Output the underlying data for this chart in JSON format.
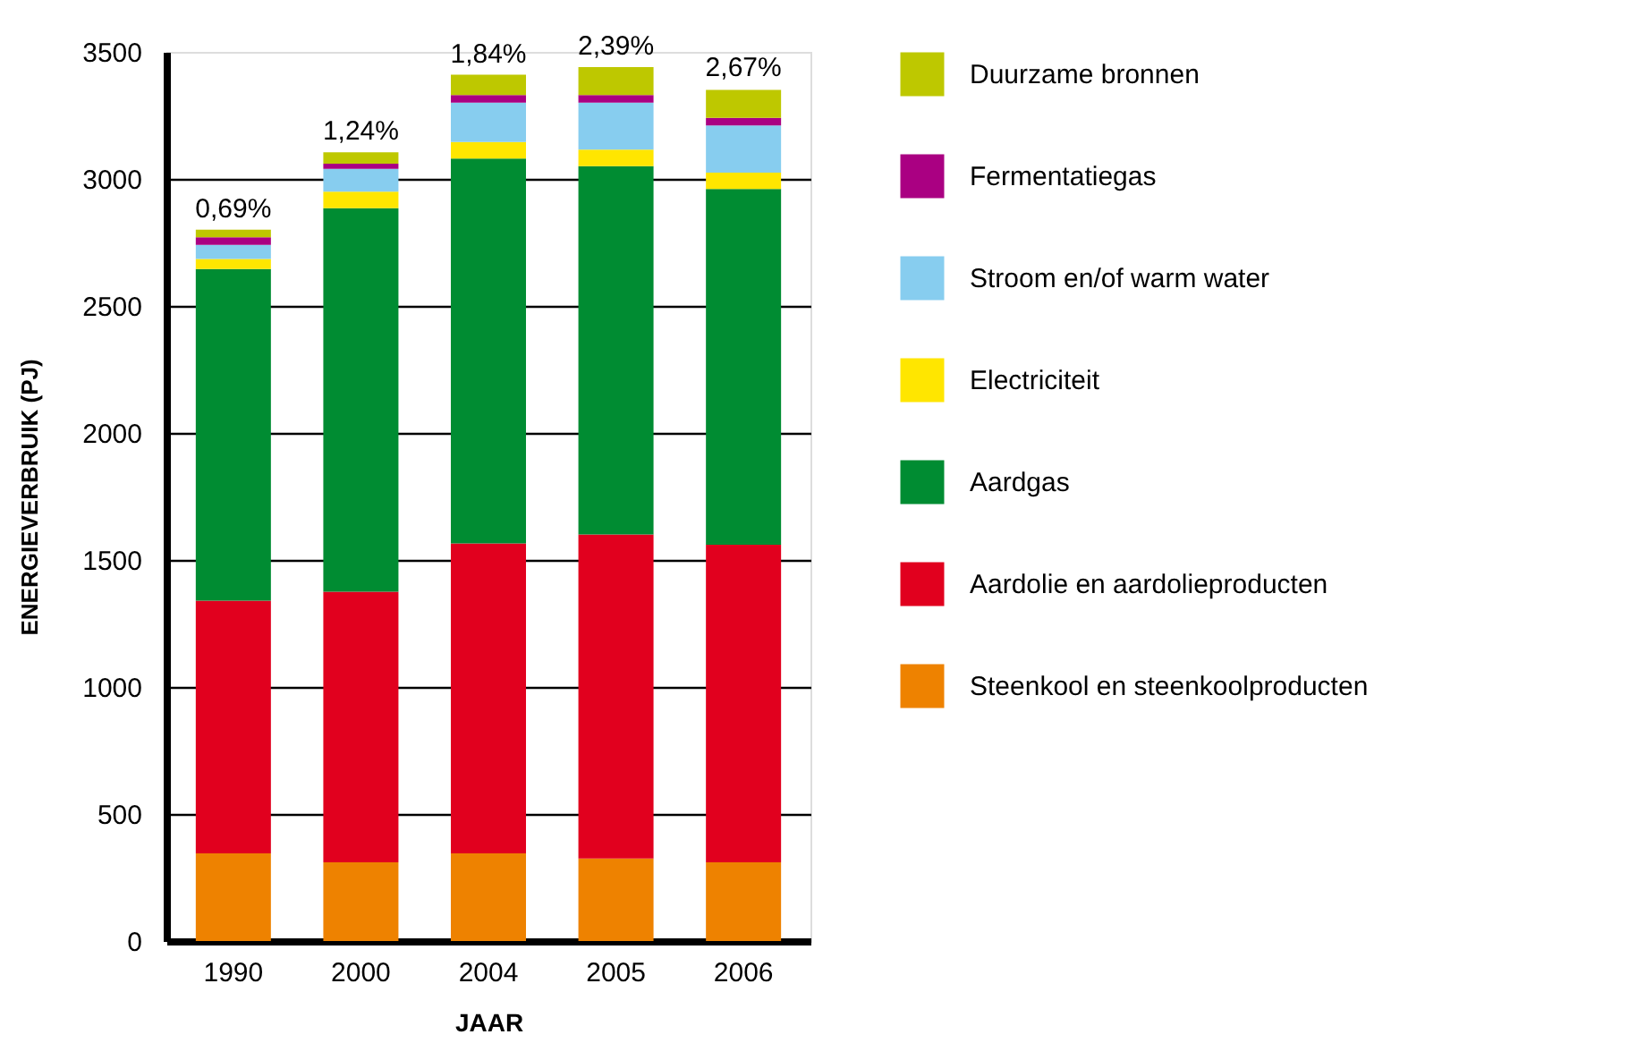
{
  "chart_data": {
    "type": "bar",
    "stacked": true,
    "xlabel": "JAAR",
    "ylabel": "ENERGIEVERBRUIK (PJ)",
    "categories": [
      "1990",
      "2000",
      "2004",
      "2005",
      "2006"
    ],
    "series": [
      {
        "name": "Steenkool en steenkoolproducten",
        "color": "#ee8200",
        "values": [
          345,
          310,
          345,
          325,
          310
        ]
      },
      {
        "name": "Aardolie en aardolieproducten",
        "color": "#e1001e",
        "values": [
          995,
          1065,
          1220,
          1275,
          1250
        ]
      },
      {
        "name": "Aardgas",
        "color": "#008c32",
        "values": [
          1305,
          1510,
          1515,
          1450,
          1400
        ]
      },
      {
        "name": "Electriciteit",
        "color": "#ffe600",
        "values": [
          40,
          65,
          65,
          65,
          65
        ]
      },
      {
        "name": "Stroom en/of warm water",
        "color": "#87cdef",
        "values": [
          55,
          90,
          155,
          185,
          185
        ]
      },
      {
        "name": "Fermentatiegas",
        "color": "#aa0082",
        "values": [
          30,
          20,
          30,
          30,
          30
        ]
      },
      {
        "name": "Duurzame bronnen",
        "color": "#bec800",
        "values": [
          30,
          45,
          80,
          110,
          110
        ]
      }
    ],
    "annotations": [
      {
        "text": "0,69%",
        "x": "1990",
        "y": 2800
      },
      {
        "text": "1,24%",
        "x": "2000",
        "y": 3105
      },
      {
        "text": "1,84%",
        "x": "2004",
        "y": 3410
      },
      {
        "text": "2,39%",
        "x": "2005",
        "y": 3440
      },
      {
        "text": "2,67%",
        "x": "2006",
        "y": 3355
      }
    ],
    "ylim": [
      0,
      3500
    ],
    "yticks": [
      0,
      500,
      1000,
      1500,
      2000,
      2500,
      3000,
      3500
    ],
    "grid": "y",
    "legend": "right"
  }
}
